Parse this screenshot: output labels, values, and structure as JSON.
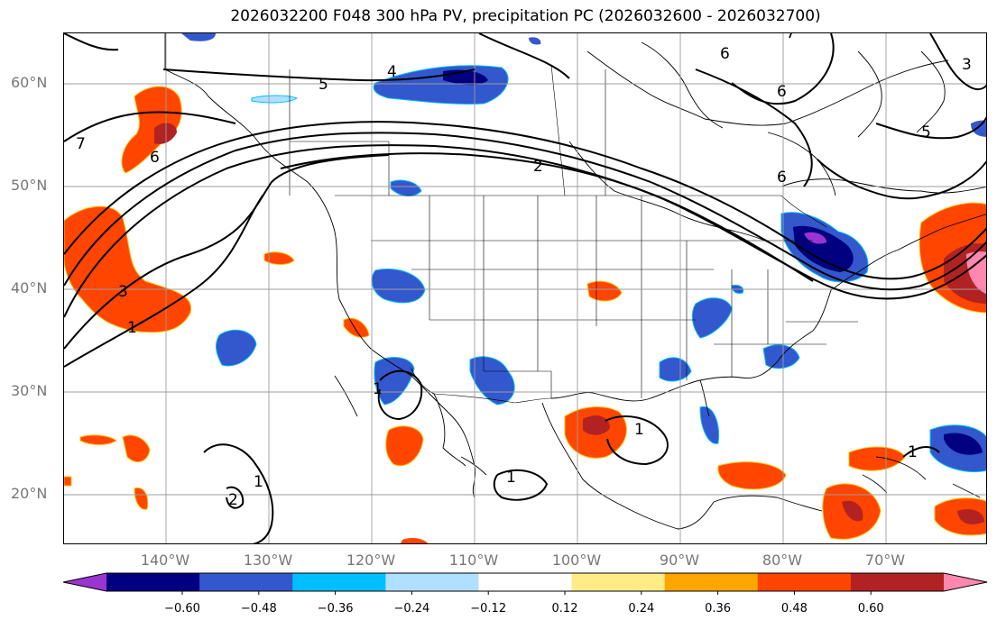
{
  "title": "2026032200 F048 300 hPa PV, precipitation PC (2026032600 - 2026032700)",
  "map": {
    "lon_range": [
      -150,
      -60
    ],
    "lat_range": [
      15,
      65
    ],
    "lat_labels": [
      "20°N",
      "30°N",
      "40°N",
      "50°N",
      "60°N"
    ],
    "lon_labels": [
      "140°W",
      "130°W",
      "120°W",
      "110°W",
      "100°W",
      "90°W",
      "80°W",
      "70°W"
    ],
    "gridlines": true,
    "pv_contour_labels": [
      "1",
      "1",
      "1",
      "1",
      "1",
      "1",
      "2",
      "2",
      "3",
      "3",
      "4",
      "5",
      "5",
      "6",
      "6",
      "6",
      "6",
      "7",
      "7"
    ]
  },
  "colorbar": {
    "colors": [
      "#9a35d1",
      "#000080",
      "#3357cc",
      "#00bfff",
      "#b0e0ff",
      "#ffffff",
      "#ffec86",
      "#ffa500",
      "#ff4500",
      "#b22222",
      "#ff88b0"
    ],
    "ticks": [
      "−0.60",
      "−0.48",
      "−0.36",
      "−0.24",
      "−0.12",
      "0.12",
      "0.24",
      "0.36",
      "0.48",
      "0.60"
    ]
  }
}
